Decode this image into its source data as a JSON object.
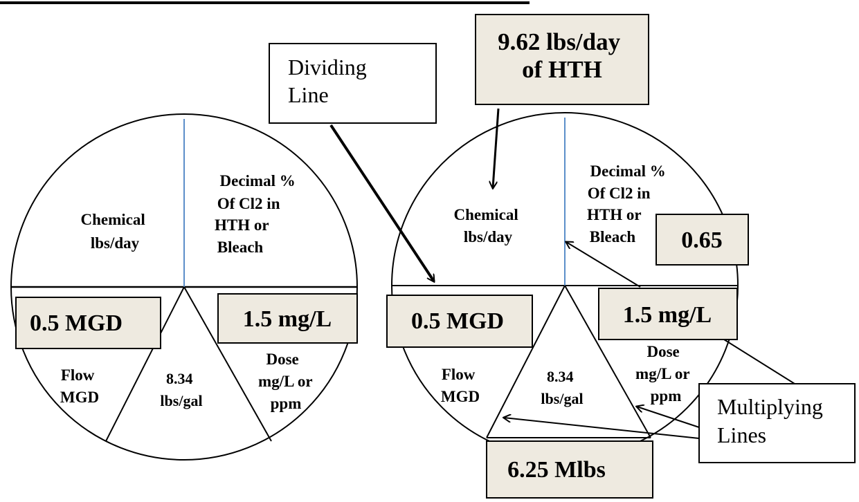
{
  "left_circle": {
    "chemical": [
      "Chemical",
      "lbs/day"
    ],
    "decimal": [
      "Decimal %",
      "Of Cl2 in",
      "HTH or",
      "Bleach"
    ],
    "flow": [
      "Flow",
      "MGD"
    ],
    "constant": [
      "8.34",
      "lbs/gal"
    ],
    "dose": [
      "Dose",
      "mg/L or",
      "ppm"
    ],
    "flow_value": "0.5 MGD",
    "dose_value": "1.5 mg/L"
  },
  "right_circle": {
    "chemical": [
      "Chemical",
      "lbs/day"
    ],
    "decimal": [
      "Decimal %",
      "Of Cl2 in",
      "HTH or",
      "Bleach"
    ],
    "flow": [
      "Flow",
      "MGD"
    ],
    "constant": [
      "8.34",
      "lbs/gal"
    ],
    "dose": [
      "Dose",
      "mg/L or",
      "ppm"
    ],
    "flow_value": "0.5 MGD",
    "dose_value": "1.5 mg/L",
    "decimal_value": "0.65",
    "result_value": [
      "9.62 lbs/day",
      "of HTH"
    ],
    "product_value": "6.25 Mlbs"
  },
  "callouts": {
    "dividing_line": [
      "Dividing",
      "Line"
    ],
    "multiplying_lines": [
      "Multiplying",
      "Lines"
    ]
  },
  "colors": {
    "value_box_fill": "#eeeae0",
    "vertical_divider": "#5b8ec9"
  }
}
